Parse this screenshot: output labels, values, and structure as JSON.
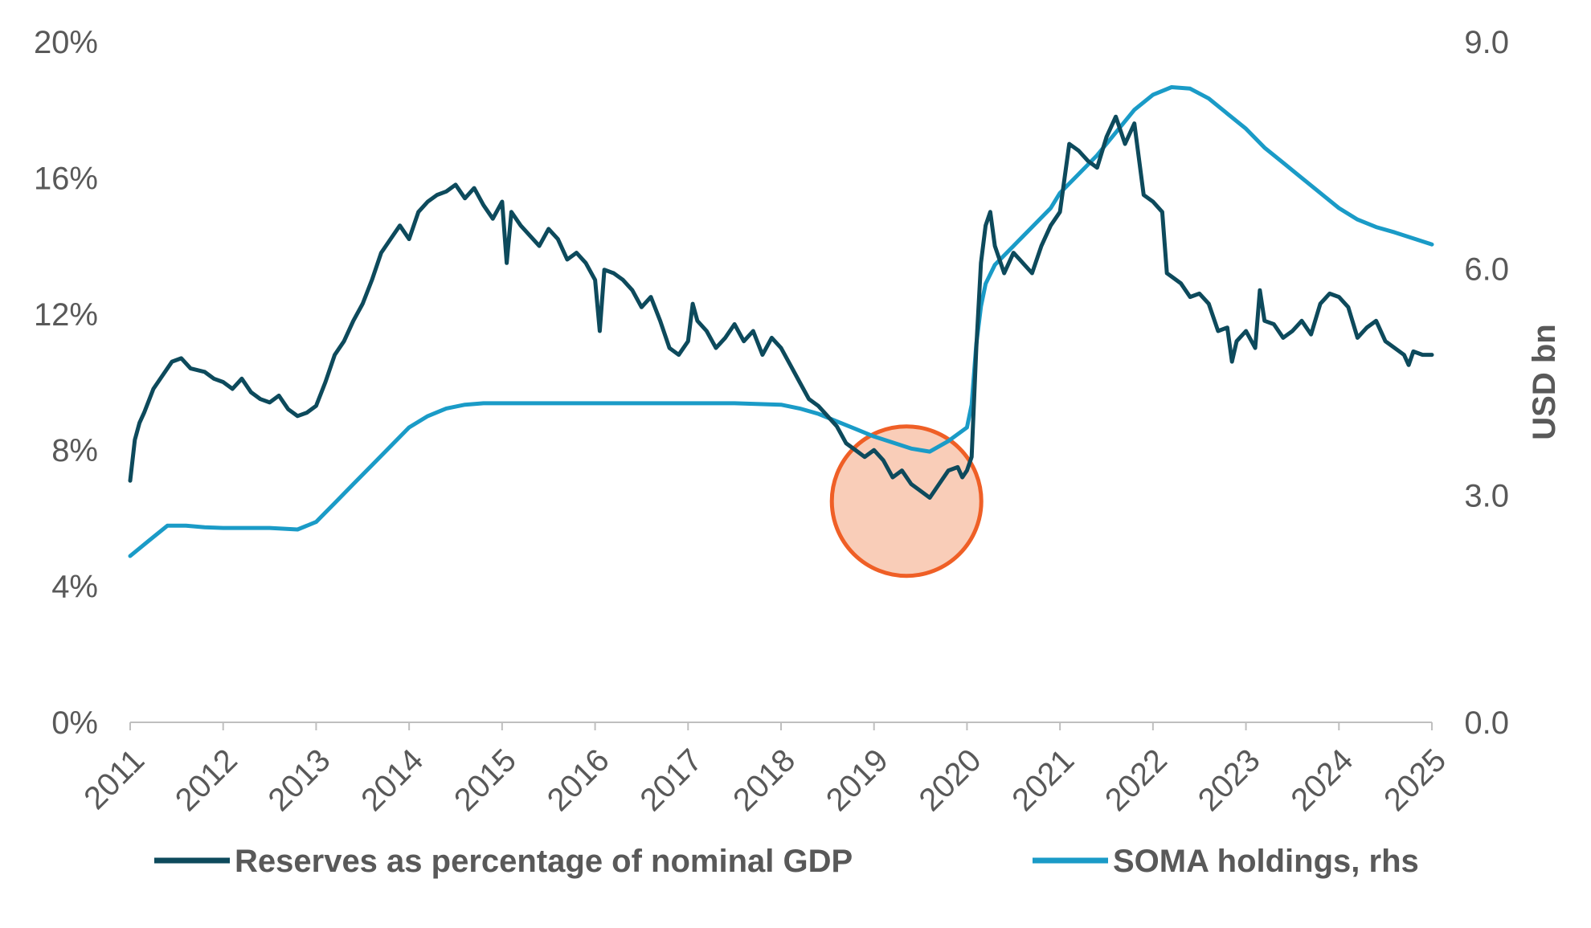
{
  "chart_data": {
    "type": "line",
    "title": "",
    "xlabel": "",
    "ylabel_left": "",
    "ylabel_right": "USD bn",
    "x_range": [
      2011,
      2025
    ],
    "x_ticks": [
      "2011",
      "2012",
      "2013",
      "2014",
      "2015",
      "2016",
      "2017",
      "2018",
      "2019",
      "2020",
      "2021",
      "2022",
      "2023",
      "2024",
      "2025"
    ],
    "y_left": {
      "range": [
        0,
        20
      ],
      "ticks": [
        0,
        4,
        8,
        12,
        16,
        20
      ],
      "tick_labels": [
        "0%",
        "4%",
        "8%",
        "12%",
        "16%",
        "20%"
      ]
    },
    "y_right": {
      "range": [
        0,
        9
      ],
      "ticks": [
        0,
        3,
        6,
        9
      ],
      "tick_labels": [
        "0.0",
        "3.0",
        "6.0",
        "9.0"
      ]
    },
    "series": [
      {
        "name": "Reserves as percentage of nominal GDP",
        "axis": "left",
        "color": "#0d4a5c",
        "points": [
          [
            2011.0,
            7.1
          ],
          [
            2011.05,
            8.3
          ],
          [
            2011.1,
            8.8
          ],
          [
            2011.15,
            9.1
          ],
          [
            2011.25,
            9.8
          ],
          [
            2011.35,
            10.2
          ],
          [
            2011.45,
            10.6
          ],
          [
            2011.55,
            10.7
          ],
          [
            2011.65,
            10.4
          ],
          [
            2011.8,
            10.3
          ],
          [
            2011.9,
            10.1
          ],
          [
            2012.0,
            10.0
          ],
          [
            2012.1,
            9.8
          ],
          [
            2012.2,
            10.1
          ],
          [
            2012.3,
            9.7
          ],
          [
            2012.4,
            9.5
          ],
          [
            2012.5,
            9.4
          ],
          [
            2012.6,
            9.6
          ],
          [
            2012.7,
            9.2
          ],
          [
            2012.8,
            9.0
          ],
          [
            2012.9,
            9.1
          ],
          [
            2013.0,
            9.3
          ],
          [
            2013.1,
            10.0
          ],
          [
            2013.2,
            10.8
          ],
          [
            2013.3,
            11.2
          ],
          [
            2013.4,
            11.8
          ],
          [
            2013.5,
            12.3
          ],
          [
            2013.6,
            13.0
          ],
          [
            2013.7,
            13.8
          ],
          [
            2013.8,
            14.2
          ],
          [
            2013.9,
            14.6
          ],
          [
            2014.0,
            14.2
          ],
          [
            2014.1,
            15.0
          ],
          [
            2014.2,
            15.3
          ],
          [
            2014.3,
            15.5
          ],
          [
            2014.4,
            15.6
          ],
          [
            2014.5,
            15.8
          ],
          [
            2014.6,
            15.4
          ],
          [
            2014.7,
            15.7
          ],
          [
            2014.8,
            15.2
          ],
          [
            2014.9,
            14.8
          ],
          [
            2015.0,
            15.3
          ],
          [
            2015.05,
            13.5
          ],
          [
            2015.1,
            15.0
          ],
          [
            2015.2,
            14.6
          ],
          [
            2015.3,
            14.3
          ],
          [
            2015.4,
            14.0
          ],
          [
            2015.5,
            14.5
          ],
          [
            2015.6,
            14.2
          ],
          [
            2015.7,
            13.6
          ],
          [
            2015.8,
            13.8
          ],
          [
            2015.9,
            13.5
          ],
          [
            2016.0,
            13.0
          ],
          [
            2016.05,
            11.5
          ],
          [
            2016.1,
            13.3
          ],
          [
            2016.2,
            13.2
          ],
          [
            2016.3,
            13.0
          ],
          [
            2016.4,
            12.7
          ],
          [
            2016.5,
            12.2
          ],
          [
            2016.6,
            12.5
          ],
          [
            2016.7,
            11.8
          ],
          [
            2016.8,
            11.0
          ],
          [
            2016.9,
            10.8
          ],
          [
            2017.0,
            11.2
          ],
          [
            2017.05,
            12.3
          ],
          [
            2017.1,
            11.8
          ],
          [
            2017.2,
            11.5
          ],
          [
            2017.3,
            11.0
          ],
          [
            2017.4,
            11.3
          ],
          [
            2017.5,
            11.7
          ],
          [
            2017.6,
            11.2
          ],
          [
            2017.7,
            11.5
          ],
          [
            2017.8,
            10.8
          ],
          [
            2017.9,
            11.3
          ],
          [
            2018.0,
            11.0
          ],
          [
            2018.1,
            10.5
          ],
          [
            2018.2,
            10.0
          ],
          [
            2018.3,
            9.5
          ],
          [
            2018.4,
            9.3
          ],
          [
            2018.5,
            9.0
          ],
          [
            2018.6,
            8.7
          ],
          [
            2018.7,
            8.2
          ],
          [
            2018.8,
            8.0
          ],
          [
            2018.9,
            7.8
          ],
          [
            2019.0,
            8.0
          ],
          [
            2019.1,
            7.7
          ],
          [
            2019.2,
            7.2
          ],
          [
            2019.3,
            7.4
          ],
          [
            2019.4,
            7.0
          ],
          [
            2019.5,
            6.8
          ],
          [
            2019.6,
            6.6
          ],
          [
            2019.7,
            7.0
          ],
          [
            2019.8,
            7.4
          ],
          [
            2019.9,
            7.5
          ],
          [
            2019.95,
            7.2
          ],
          [
            2020.0,
            7.4
          ],
          [
            2020.05,
            7.8
          ],
          [
            2020.1,
            11.0
          ],
          [
            2020.15,
            13.5
          ],
          [
            2020.2,
            14.6
          ],
          [
            2020.25,
            15.0
          ],
          [
            2020.3,
            14.0
          ],
          [
            2020.4,
            13.2
          ],
          [
            2020.5,
            13.8
          ],
          [
            2020.6,
            13.5
          ],
          [
            2020.7,
            13.2
          ],
          [
            2020.8,
            14.0
          ],
          [
            2020.9,
            14.6
          ],
          [
            2021.0,
            15.0
          ],
          [
            2021.05,
            16.0
          ],
          [
            2021.1,
            17.0
          ],
          [
            2021.2,
            16.8
          ],
          [
            2021.3,
            16.5
          ],
          [
            2021.4,
            16.3
          ],
          [
            2021.5,
            17.2
          ],
          [
            2021.6,
            17.8
          ],
          [
            2021.7,
            17.0
          ],
          [
            2021.8,
            17.6
          ],
          [
            2021.9,
            15.5
          ],
          [
            2022.0,
            15.3
          ],
          [
            2022.1,
            15.0
          ],
          [
            2022.15,
            13.2
          ],
          [
            2022.2,
            13.1
          ],
          [
            2022.3,
            12.9
          ],
          [
            2022.4,
            12.5
          ],
          [
            2022.5,
            12.6
          ],
          [
            2022.6,
            12.3
          ],
          [
            2022.7,
            11.5
          ],
          [
            2022.8,
            11.6
          ],
          [
            2022.85,
            10.6
          ],
          [
            2022.9,
            11.2
          ],
          [
            2023.0,
            11.5
          ],
          [
            2023.1,
            11.0
          ],
          [
            2023.15,
            12.7
          ],
          [
            2023.2,
            11.8
          ],
          [
            2023.3,
            11.7
          ],
          [
            2023.4,
            11.3
          ],
          [
            2023.5,
            11.5
          ],
          [
            2023.6,
            11.8
          ],
          [
            2023.7,
            11.4
          ],
          [
            2023.8,
            12.3
          ],
          [
            2023.9,
            12.6
          ],
          [
            2024.0,
            12.5
          ],
          [
            2024.1,
            12.2
          ],
          [
            2024.2,
            11.3
          ],
          [
            2024.3,
            11.6
          ],
          [
            2024.4,
            11.8
          ],
          [
            2024.5,
            11.2
          ],
          [
            2024.6,
            11.0
          ],
          [
            2024.7,
            10.8
          ],
          [
            2024.75,
            10.5
          ],
          [
            2024.8,
            10.9
          ],
          [
            2024.9,
            10.8
          ],
          [
            2025.0,
            10.8
          ]
        ]
      },
      {
        "name": "SOMA holdings, rhs",
        "axis": "right",
        "color": "#1a9bc7",
        "points": [
          [
            2011.0,
            2.2
          ],
          [
            2011.2,
            2.4
          ],
          [
            2011.4,
            2.6
          ],
          [
            2011.6,
            2.6
          ],
          [
            2011.8,
            2.58
          ],
          [
            2012.0,
            2.57
          ],
          [
            2012.3,
            2.57
          ],
          [
            2012.5,
            2.57
          ],
          [
            2012.8,
            2.55
          ],
          [
            2013.0,
            2.65
          ],
          [
            2013.2,
            2.9
          ],
          [
            2013.4,
            3.15
          ],
          [
            2013.6,
            3.4
          ],
          [
            2013.8,
            3.65
          ],
          [
            2014.0,
            3.9
          ],
          [
            2014.2,
            4.05
          ],
          [
            2014.4,
            4.15
          ],
          [
            2014.6,
            4.2
          ],
          [
            2014.8,
            4.22
          ],
          [
            2015.0,
            4.22
          ],
          [
            2015.5,
            4.22
          ],
          [
            2016.0,
            4.22
          ],
          [
            2016.5,
            4.22
          ],
          [
            2017.0,
            4.22
          ],
          [
            2017.5,
            4.22
          ],
          [
            2018.0,
            4.2
          ],
          [
            2018.2,
            4.15
          ],
          [
            2018.4,
            4.08
          ],
          [
            2018.6,
            3.98
          ],
          [
            2018.8,
            3.88
          ],
          [
            2019.0,
            3.78
          ],
          [
            2019.2,
            3.7
          ],
          [
            2019.4,
            3.62
          ],
          [
            2019.6,
            3.58
          ],
          [
            2019.8,
            3.72
          ],
          [
            2020.0,
            3.9
          ],
          [
            2020.05,
            4.2
          ],
          [
            2020.1,
            5.0
          ],
          [
            2020.15,
            5.5
          ],
          [
            2020.2,
            5.8
          ],
          [
            2020.3,
            6.05
          ],
          [
            2020.5,
            6.3
          ],
          [
            2020.7,
            6.55
          ],
          [
            2020.9,
            6.8
          ],
          [
            2021.0,
            7.0
          ],
          [
            2021.2,
            7.25
          ],
          [
            2021.4,
            7.5
          ],
          [
            2021.6,
            7.8
          ],
          [
            2021.8,
            8.1
          ],
          [
            2022.0,
            8.3
          ],
          [
            2022.2,
            8.4
          ],
          [
            2022.4,
            8.38
          ],
          [
            2022.6,
            8.25
          ],
          [
            2022.8,
            8.05
          ],
          [
            2023.0,
            7.85
          ],
          [
            2023.2,
            7.6
          ],
          [
            2023.4,
            7.4
          ],
          [
            2023.6,
            7.2
          ],
          [
            2023.8,
            7.0
          ],
          [
            2024.0,
            6.8
          ],
          [
            2024.2,
            6.65
          ],
          [
            2024.4,
            6.55
          ],
          [
            2024.6,
            6.48
          ],
          [
            2024.8,
            6.4
          ],
          [
            2025.0,
            6.32
          ]
        ]
      }
    ],
    "annotations": [
      {
        "type": "circle",
        "label": "",
        "center_x": 2019.35,
        "center_y_left": 6.5,
        "fill": "#f9cdb8",
        "stroke": "#ef5f26"
      }
    ],
    "legend": {
      "position": "bottom",
      "items": [
        "Reserves as percentage of nominal GDP",
        "SOMA holdings, rhs"
      ]
    },
    "grid": false
  }
}
